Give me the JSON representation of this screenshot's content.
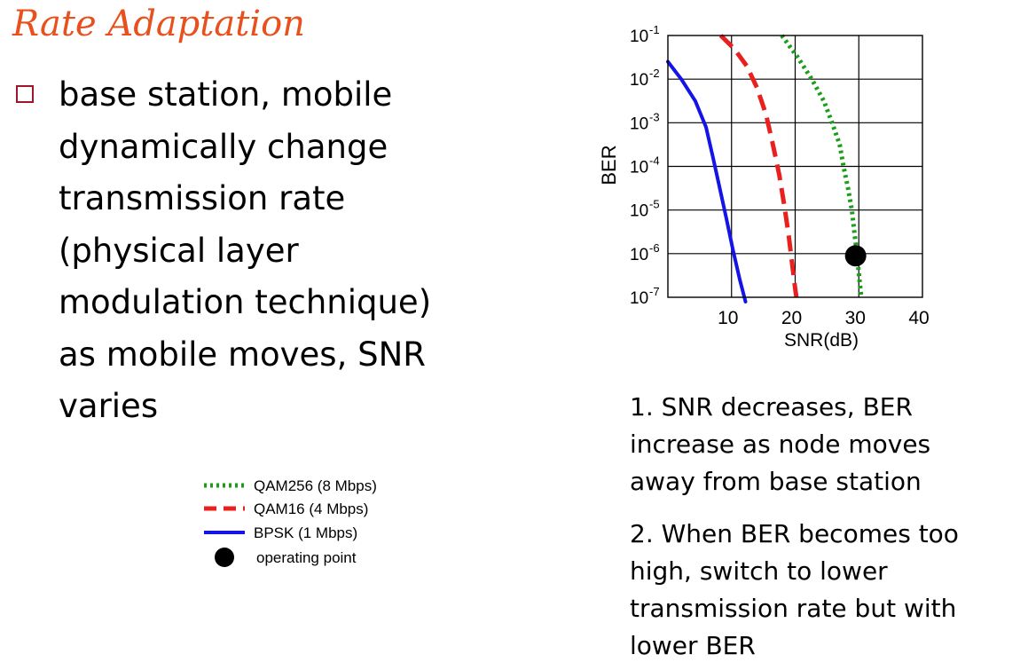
{
  "slide": {
    "title": "Rate Adaptation",
    "bullet_lines": [
      "base station, mobile",
      "dynamically change",
      "transmission rate",
      "(physical layer",
      "modulation technique)",
      "as mobile moves, SNR",
      "varies"
    ],
    "note1_lines": [
      "1. SNR decreases, BER",
      "increase as node moves",
      "away from base station"
    ],
    "note2_lines": [
      "2. When BER becomes too",
      "high, switch to lower",
      "transmission rate but with",
      "lower BER"
    ]
  },
  "chart_data": {
    "type": "line",
    "xlabel": "SNR(dB)",
    "ylabel": "BER",
    "xscale": "linear",
    "yscale": "log",
    "xlim": [
      0,
      40
    ],
    "ylim_exponents": [
      -7,
      -1
    ],
    "x_ticks": [
      "10",
      "20",
      "30",
      "40"
    ],
    "y_ticks": [
      {
        "base": "10",
        "exp": "-1"
      },
      {
        "base": "10",
        "exp": "-2"
      },
      {
        "base": "10",
        "exp": "-3"
      },
      {
        "base": "10",
        "exp": "-4"
      },
      {
        "base": "10",
        "exp": "-5"
      },
      {
        "base": "10",
        "exp": "-6"
      },
      {
        "base": "10",
        "exp": "-7"
      }
    ],
    "grid": true,
    "series": [
      {
        "name": "QAM256 (8 Mbps)",
        "color": "#1a9e1a",
        "dash": "dotted",
        "points": [
          [
            17.9,
            -1.0
          ],
          [
            20.4,
            -1.5
          ],
          [
            22.6,
            -2.0
          ],
          [
            24.5,
            -2.5
          ],
          [
            25.8,
            -3.0
          ],
          [
            27.0,
            -3.5
          ],
          [
            27.6,
            -4.0
          ],
          [
            28.3,
            -4.5
          ],
          [
            28.9,
            -5.0
          ],
          [
            29.3,
            -5.5
          ],
          [
            29.7,
            -6.0
          ],
          [
            30.1,
            -6.6
          ],
          [
            30.4,
            -7.0
          ]
        ]
      },
      {
        "name": "QAM16 (4 Mbps)",
        "color": "#e8201e",
        "dash": "dashed",
        "points": [
          [
            8.3,
            -1.0
          ],
          [
            10.4,
            -1.3
          ],
          [
            12.4,
            -1.7
          ],
          [
            14.0,
            -2.2
          ],
          [
            15.4,
            -2.8
          ],
          [
            16.5,
            -3.5
          ],
          [
            17.5,
            -4.2
          ],
          [
            18.3,
            -4.9
          ],
          [
            19.0,
            -5.6
          ],
          [
            19.5,
            -6.2
          ],
          [
            20.0,
            -6.8
          ],
          [
            20.2,
            -7.0
          ]
        ]
      },
      {
        "name": "BPSK (1 Mbps)",
        "color": "#1414e6",
        "dash": "solid",
        "points": [
          [
            0.0,
            -1.6
          ],
          [
            2.1,
            -2.0
          ],
          [
            4.3,
            -2.5
          ],
          [
            6.0,
            -3.1
          ],
          [
            7.1,
            -3.8
          ],
          [
            8.0,
            -4.4
          ],
          [
            9.2,
            -5.2
          ],
          [
            10.2,
            -5.9
          ],
          [
            11.3,
            -6.6
          ],
          [
            12.2,
            -7.1
          ]
        ]
      }
    ],
    "operating_point": {
      "x": 29.5,
      "y": -6.05,
      "label": "operating point"
    }
  }
}
